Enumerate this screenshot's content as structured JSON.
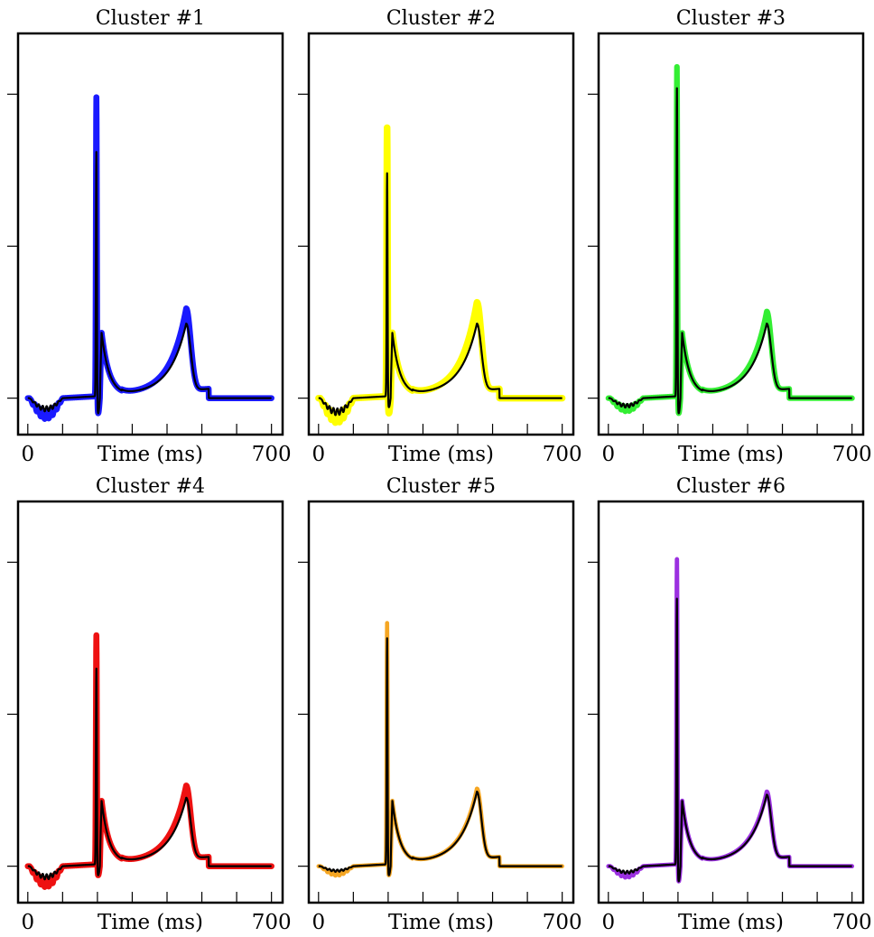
{
  "chart_data": [
    {
      "type": "line",
      "title": "Cluster #1",
      "xlabel": "Time (ms)",
      "x_tick_labels": [
        "0",
        "700"
      ],
      "xlim": [
        0,
        700
      ],
      "color": "#1a1aff",
      "band_width": 1.8,
      "mean_peak": 8.1,
      "band_peak": 9.9,
      "mean_late_peak": 2.6,
      "band_late_peak": 3.1,
      "trough": -0.35,
      "band_trough": -0.55
    },
    {
      "type": "line",
      "title": "Cluster #2",
      "xlabel": "Time (ms)",
      "x_tick_labels": [
        "0",
        "700"
      ],
      "xlim": [
        0,
        700
      ],
      "color": "#ffff00",
      "band_width": 2.2,
      "mean_peak": 7.4,
      "band_peak": 8.9,
      "mean_late_peak": 2.6,
      "band_late_peak": 3.3,
      "trough": -0.45,
      "band_trough": -0.65
    },
    {
      "type": "line",
      "title": "Cluster #3",
      "xlabel": "Time (ms)",
      "x_tick_labels": [
        "0",
        "700"
      ],
      "xlim": [
        0,
        700
      ],
      "color": "#33ee33",
      "band_width": 1.6,
      "mean_peak": 10.2,
      "band_peak": 10.9,
      "mean_late_peak": 2.6,
      "band_late_peak": 3.0,
      "trough": -0.25,
      "band_trough": -0.35
    },
    {
      "type": "line",
      "title": "Cluster #4",
      "xlabel": "Time (ms)",
      "x_tick_labels": [
        "0",
        "700"
      ],
      "xlim": [
        0,
        700
      ],
      "color": "#ee1111",
      "band_width": 1.8,
      "mean_peak": 6.5,
      "band_peak": 7.6,
      "mean_late_peak": 2.4,
      "band_late_peak": 2.8,
      "trough": -0.35,
      "band_trough": -0.55
    },
    {
      "type": "line",
      "title": "Cluster #5",
      "xlabel": "Time (ms)",
      "x_tick_labels": [
        "0",
        "700"
      ],
      "xlim": [
        0,
        700
      ],
      "color": "#f5a623",
      "band_width": 0.8,
      "mean_peak": 7.5,
      "band_peak": 8.0,
      "mean_late_peak": 2.6,
      "band_late_peak": 2.7,
      "trough": -0.15,
      "band_trough": -0.25
    },
    {
      "type": "line",
      "title": "Cluster #6",
      "xlabel": "Time (ms)",
      "x_tick_labels": [
        "0",
        "700"
      ],
      "xlim": [
        0,
        700
      ],
      "color": "#9b30e0",
      "band_width": 0.9,
      "mean_peak": 8.8,
      "band_peak": 10.1,
      "mean_late_peak": 2.5,
      "band_late_peak": 2.6,
      "trough": -0.2,
      "band_trough": -0.3
    }
  ]
}
